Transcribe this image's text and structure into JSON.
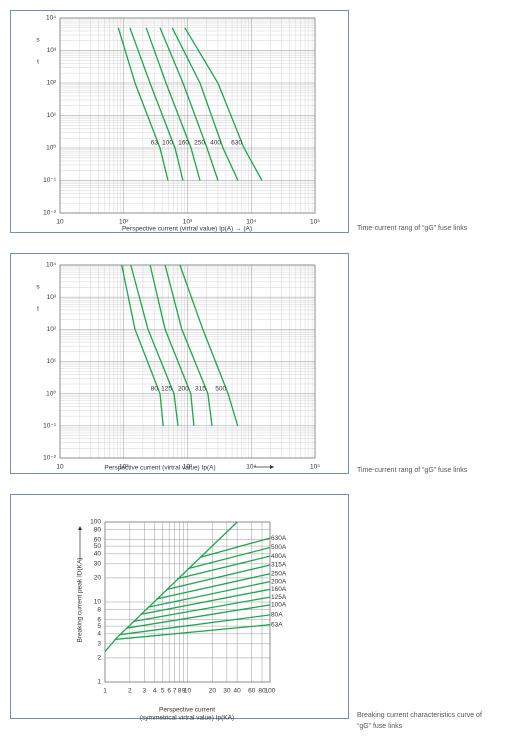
{
  "chart_data": [
    {
      "type": "line",
      "log_x": true,
      "log_y": true,
      "grid": true,
      "xlim": [
        10,
        100000
      ],
      "ylim": [
        0.01,
        10000
      ],
      "xticks": [
        10,
        {
          "value": 100,
          "label": "10²"
        },
        {
          "value": 1000,
          "label": "10³"
        },
        {
          "value": 10000,
          "label": "10⁴"
        },
        {
          "value": 100000,
          "label": "10⁵"
        }
      ],
      "yticks": [
        {
          "value": 10000,
          "label": "10⁴"
        },
        {
          "value": 1000,
          "label": "10³"
        },
        {
          "value": 100,
          "label": "10²"
        },
        {
          "value": 10,
          "label": "10¹"
        },
        {
          "value": 1,
          "label": "10⁰"
        },
        {
          "value": 0.1,
          "label": "10⁻¹"
        },
        {
          "value": 0.01,
          "label": "10⁻²"
        }
      ],
      "y_unit": "s",
      "y_label": "t",
      "x_label": "Perspective current (virtral value) Ip(A)  →  (A)",
      "caption": "Time-current rang of  “gG” fuse links",
      "series": [
        {
          "name": "63",
          "color": "#1aa84b",
          "x": [
            82,
            150,
            370,
            494
          ],
          "values": [
            5000,
            100,
            1,
            0.1
          ]
        },
        {
          "name": "100",
          "color": "#1aa84b",
          "x": [
            125,
            258,
            637,
            850
          ],
          "values": [
            5000,
            100,
            1,
            0.1
          ]
        },
        {
          "name": "160",
          "color": "#1aa84b",
          "x": [
            225,
            460,
            1135,
            1570
          ],
          "values": [
            5000,
            100,
            1,
            0.1
          ]
        },
        {
          "name": "250",
          "color": "#1aa84b",
          "x": [
            370,
            850,
            2020,
            3010
          ],
          "values": [
            5000,
            100,
            1,
            0.1
          ]
        },
        {
          "name": "400",
          "color": "#1aa84b",
          "x": [
            575,
            1570,
            3610,
            6190
          ],
          "values": [
            5000,
            100,
            1,
            0.1
          ]
        },
        {
          "name": "630",
          "color": "#1aa84b",
          "x": [
            910,
            3000,
            7690,
            14750
          ],
          "values": [
            5000,
            100,
            1,
            0.1
          ]
        }
      ]
    },
    {
      "type": "line",
      "log_x": true,
      "log_y": true,
      "grid": true,
      "xlim": [
        10,
        100000
      ],
      "ylim": [
        0.01,
        10000
      ],
      "xticks": [
        10,
        {
          "value": 100,
          "label": "10²"
        },
        {
          "value": 1000,
          "label": "10³"
        },
        {
          "value": 10000,
          "label": "10⁴"
        },
        {
          "value": 100000,
          "label": "10⁵"
        }
      ],
      "yticks": [
        {
          "value": 10000,
          "label": "10⁴"
        },
        {
          "value": 1000,
          "label": "10³"
        },
        {
          "value": 100,
          "label": "10²"
        },
        {
          "value": 10,
          "label": "10¹"
        },
        {
          "value": 1,
          "label": "10⁰"
        },
        {
          "value": 0.1,
          "label": "10⁻¹"
        },
        {
          "value": 0.01,
          "label": "10⁻²"
        }
      ],
      "y_unit": "s",
      "y_label": "t",
      "x_label": "Perspective current (virtral value) Ip(A)",
      "caption": "Time-current rang of  “gG” fuse links",
      "series": [
        {
          "name": "80",
          "color": "#1aa84b",
          "x": [
            93,
            150,
            370,
            415
          ],
          "values": [
            10000,
            100,
            1,
            0.1
          ]
        },
        {
          "name": "125",
          "color": "#1aa84b",
          "x": [
            129,
            240,
            615,
            710
          ],
          "values": [
            10000,
            100,
            1,
            0.1
          ]
        },
        {
          "name": "200",
          "color": "#1aa84b",
          "x": [
            259,
            446,
            1125,
            1260
          ],
          "values": [
            10000,
            100,
            1,
            0.1
          ]
        },
        {
          "name": "315",
          "color": "#1aa84b",
          "x": [
            446,
            815,
            2090,
            2420
          ],
          "values": [
            10000,
            100,
            1,
            0.1
          ]
        },
        {
          "name": "500",
          "color": "#1aa84b",
          "x": [
            761,
            1740,
            4340,
            6140
          ],
          "values": [
            10000,
            100,
            1,
            0.1
          ]
        }
      ]
    },
    {
      "type": "line",
      "log_x": true,
      "log_y": true,
      "grid": true,
      "xlim": [
        1,
        100
      ],
      "ylim": [
        1,
        100
      ],
      "xticks": [
        1,
        2,
        3,
        4,
        5,
        6,
        7,
        8,
        9,
        10,
        20,
        30,
        40,
        60,
        80,
        100
      ],
      "yticks": [
        1,
        2,
        3,
        4,
        5,
        6,
        8,
        10,
        20,
        30,
        40,
        50,
        60,
        80,
        100
      ],
      "y_label": "Breaking current peak ID(KA)",
      "x_label": [
        "Perspective current",
        "(symmetrical virtral value) Ip(KA)"
      ],
      "caption": [
        "Breaking current characteristics curve of",
        "“gG” fuse links"
      ],
      "series": [
        {
          "color": "#1aa84b",
          "x": [
            1,
            1.4,
            40
          ],
          "values": [
            2.4,
            3.6,
            100
          ]
        },
        {
          "name": "630A",
          "color": "#1aa84b",
          "x": [
            14,
            100
          ],
          "values": [
            36,
            63
          ]
        },
        {
          "name": "500A",
          "color": "#1aa84b",
          "x": [
            10,
            100
          ],
          "values": [
            26,
            48
          ]
        },
        {
          "name": "400A",
          "color": "#1aa84b",
          "x": [
            7.5,
            100
          ],
          "values": [
            19.5,
            37.5
          ]
        },
        {
          "name": "315A",
          "color": "#1aa84b",
          "x": [
            5.5,
            100
          ],
          "values": [
            14.3,
            29
          ]
        },
        {
          "name": "250A",
          "color": "#1aa84b",
          "x": [
            4.2,
            100
          ],
          "values": [
            10.9,
            22.6
          ]
        },
        {
          "name": "200A",
          "color": "#1aa84b",
          "x": [
            3.3,
            100
          ],
          "values": [
            8.6,
            18
          ]
        },
        {
          "name": "160A",
          "color": "#1aa84b",
          "x": [
            2.7,
            100
          ],
          "values": [
            7,
            14.4
          ]
        },
        {
          "name": "125A",
          "color": "#1aa84b",
          "x": [
            2.2,
            100
          ],
          "values": [
            5.7,
            11.5
          ]
        },
        {
          "name": "100A",
          "color": "#1aa84b",
          "x": [
            1.8,
            100
          ],
          "values": [
            4.7,
            9.2
          ]
        },
        {
          "name": "80A",
          "color": "#1aa84b",
          "x": [
            1.5,
            100
          ],
          "values": [
            3.9,
            6.9
          ]
        },
        {
          "name": "63A",
          "color": "#1aa84b",
          "x": [
            1.3,
            100
          ],
          "values": [
            3.4,
            5.2
          ]
        }
      ]
    }
  ]
}
